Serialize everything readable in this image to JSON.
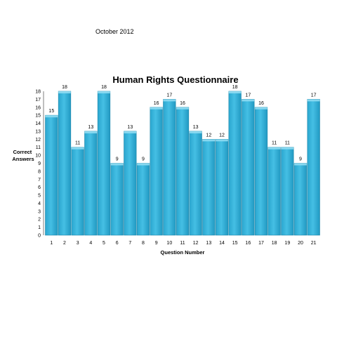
{
  "header": {
    "date": "October 2012"
  },
  "chart_data": {
    "type": "bar",
    "title": "Human Rights Questionnaire",
    "xlabel": "Question Number",
    "ylabel": "Correct Answers",
    "categories": [
      "1",
      "2",
      "3",
      "4",
      "5",
      "6",
      "7",
      "8",
      "9",
      "10",
      "11",
      "12",
      "13",
      "14",
      "15",
      "16",
      "17",
      "18",
      "19",
      "20",
      "21"
    ],
    "values": [
      15,
      18,
      11,
      13,
      18,
      9,
      13,
      9,
      16,
      17,
      16,
      13,
      12,
      12,
      18,
      17,
      16,
      11,
      11,
      9,
      17
    ],
    "ylim": [
      0,
      18
    ],
    "yticks": [
      "0",
      "1",
      "2",
      "3",
      "4",
      "5",
      "6",
      "7",
      "8",
      "9",
      "10",
      "11",
      "12",
      "13",
      "14",
      "15",
      "16",
      "17",
      "18"
    ],
    "grid": false,
    "colors": {
      "bar": "#3bb6dc",
      "bar_top": "#8fdcf2",
      "bar_edge": "#1f86a8"
    }
  }
}
